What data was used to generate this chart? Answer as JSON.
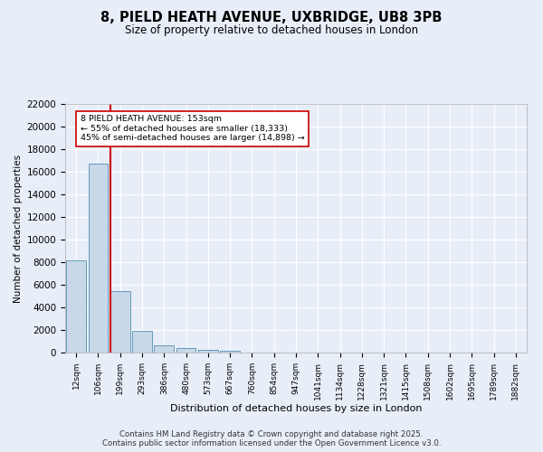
{
  "title": "8, PIELD HEATH AVENUE, UXBRIDGE, UB8 3PB",
  "subtitle": "Size of property relative to detached houses in London",
  "xlabel": "Distribution of detached houses by size in London",
  "ylabel": "Number of detached properties",
  "bar_color": "#c8d8e8",
  "bar_edge_color": "#6699bb",
  "background_color": "#e8eef8",
  "grid_color": "#ffffff",
  "categories": [
    "12sqm",
    "106sqm",
    "199sqm",
    "293sqm",
    "386sqm",
    "480sqm",
    "573sqm",
    "667sqm",
    "760sqm",
    "854sqm",
    "947sqm",
    "1041sqm",
    "1134sqm",
    "1228sqm",
    "1321sqm",
    "1415sqm",
    "1508sqm",
    "1602sqm",
    "1695sqm",
    "1789sqm",
    "1882sqm"
  ],
  "values": [
    8200,
    16700,
    5450,
    1900,
    680,
    370,
    270,
    200,
    0,
    0,
    0,
    0,
    0,
    0,
    0,
    0,
    0,
    0,
    0,
    0,
    0
  ],
  "property_line_x": 1.55,
  "property_line_color": "#cc0000",
  "annotation_text": "8 PIELD HEATH AVENUE: 153sqm\n← 55% of detached houses are smaller (18,333)\n45% of semi-detached houses are larger (14,898) →",
  "annotation_box_color": "#cc0000",
  "ylim": [
    0,
    22000
  ],
  "yticks": [
    0,
    2000,
    4000,
    6000,
    8000,
    10000,
    12000,
    14000,
    16000,
    18000,
    20000,
    22000
  ],
  "footer": "Contains HM Land Registry data © Crown copyright and database right 2025.\nContains public sector information licensed under the Open Government Licence v3.0."
}
